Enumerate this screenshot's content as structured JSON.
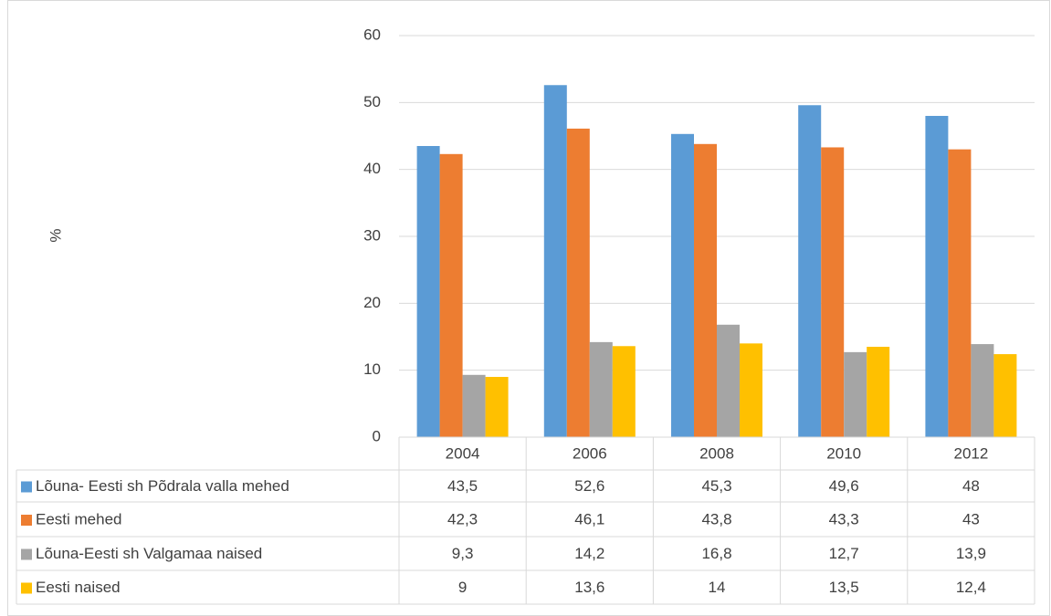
{
  "chart_data": {
    "type": "bar",
    "y_label": "%",
    "categories": [
      "2004",
      "2006",
      "2008",
      "2010",
      "2012"
    ],
    "series": [
      {
        "name": "Lõuna- Eesti sh Põdrala valla mehed",
        "color": "#5b9bd5",
        "values": [
          43.5,
          52.6,
          45.3,
          49.6,
          48
        ],
        "value_labels": [
          "43,5",
          "52,6",
          "45,3",
          "49,6",
          "48"
        ]
      },
      {
        "name": "Eesti mehed",
        "color": "#ed7d31",
        "values": [
          42.3,
          46.1,
          43.8,
          43.3,
          43
        ],
        "value_labels": [
          "42,3",
          "46,1",
          "43,8",
          "43,3",
          "43"
        ]
      },
      {
        "name": "Lõuna-Eesti sh Valgamaa naised",
        "color": "#a5a5a5",
        "values": [
          9.3,
          14.2,
          16.8,
          12.7,
          13.9
        ],
        "value_labels": [
          "9,3",
          "14,2",
          "16,8",
          "12,7",
          "13,9"
        ]
      },
      {
        "name": "Eesti naised",
        "color": "#ffc000",
        "values": [
          9,
          13.6,
          14,
          13.5,
          12.4
        ],
        "value_labels": [
          "9",
          "13,6",
          "14",
          "13,5",
          "12,4"
        ]
      }
    ],
    "ylim": [
      0,
      60
    ],
    "yticks": [
      0,
      10,
      20,
      30,
      40,
      50,
      60
    ],
    "grid": true,
    "legend": "table"
  }
}
